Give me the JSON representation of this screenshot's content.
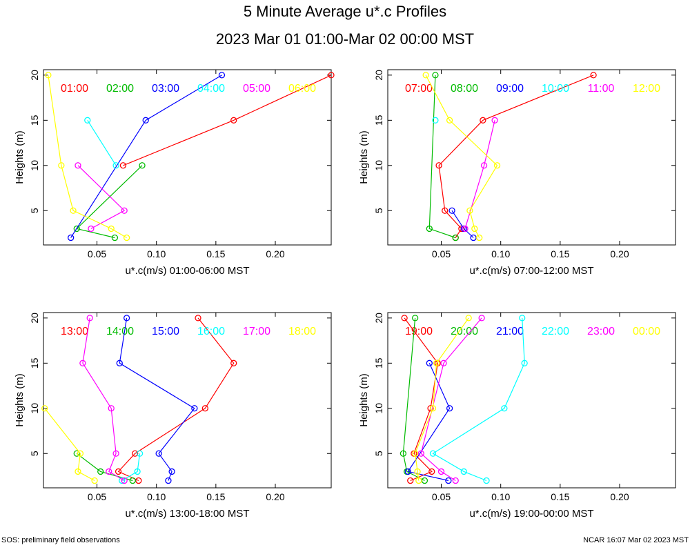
{
  "title": "5 Minute Average u*.c Profiles",
  "subtitle": "2023 Mar 01 01:00-Mar 02 00:00 MST",
  "footer_left": "SOS: preliminary field observations",
  "footer_right": "NCAR 16:07 Mar 02 2023 MST",
  "colors": [
    "#ff0000",
    "#00bb00",
    "#0000ff",
    "#00ffff",
    "#ff00ff",
    "#ffff00"
  ],
  "chart_data": [
    {
      "type": "scatter",
      "xlabel": "u*.c(m/s) 01:00-06:00 MST",
      "ylabel": "Heights (m)",
      "xlim": [
        0.005,
        0.247
      ],
      "ylim": [
        1.2,
        20.6
      ],
      "xticks": [
        "0.05",
        "0.10",
        "0.15",
        "0.20"
      ],
      "xtick_values": [
        0.05,
        0.1,
        0.15,
        0.2
      ],
      "yticks": [
        "5",
        "10",
        "15",
        "20"
      ],
      "ytick_values": [
        5,
        10,
        15,
        20
      ],
      "series": [
        {
          "name": "01:00",
          "x": [
            0.247,
            0.165,
            0.072
          ],
          "y": [
            20,
            15,
            10
          ]
        },
        {
          "name": "02:00",
          "x": [
            0.088,
            0.033,
            0.065
          ],
          "y": [
            10,
            3,
            2
          ]
        },
        {
          "name": "03:00",
          "x": [
            0.155,
            0.091,
            0.028
          ],
          "y": [
            20,
            15,
            2
          ]
        },
        {
          "name": "04:00",
          "x": [
            0.042,
            0.066
          ],
          "y": [
            15,
            10
          ]
        },
        {
          "name": "05:00",
          "x": [
            0.034,
            0.073,
            0.045
          ],
          "y": [
            10,
            5,
            3
          ]
        },
        {
          "name": "06:00",
          "x": [
            0.009,
            0.02,
            0.03,
            0.062,
            0.075
          ],
          "y": [
            20,
            10,
            5,
            3,
            2
          ]
        }
      ]
    },
    {
      "type": "scatter",
      "xlabel": "u*.c(m/s) 07:00-12:00 MST",
      "ylabel": "Heights (m)",
      "xlim": [
        0.005,
        0.247
      ],
      "ylim": [
        1.2,
        20.6
      ],
      "xticks": [
        "0.05",
        "0.10",
        "0.15",
        "0.20"
      ],
      "xtick_values": [
        0.05,
        0.1,
        0.15,
        0.2
      ],
      "yticks": [
        "5",
        "10",
        "15",
        "20"
      ],
      "ytick_values": [
        5,
        10,
        15,
        20
      ],
      "series": [
        {
          "name": "07:00",
          "x": [
            0.178,
            0.085,
            0.048,
            0.053,
            0.067,
            0.062
          ],
          "y": [
            20,
            15,
            10,
            5,
            3,
            2
          ]
        },
        {
          "name": "08:00",
          "x": [
            0.045,
            0.04,
            0.062
          ],
          "y": [
            20,
            3,
            2
          ]
        },
        {
          "name": "09:00",
          "x": [
            0.059,
            0.069,
            0.077
          ],
          "y": [
            5,
            3,
            2
          ]
        },
        {
          "name": "10:00",
          "x": [
            0.045
          ],
          "y": [
            15
          ]
        },
        {
          "name": "11:00",
          "x": [
            0.095,
            0.086,
            0.07
          ],
          "y": [
            15,
            10,
            3
          ]
        },
        {
          "name": "12:00",
          "x": [
            0.037,
            0.057,
            0.097,
            0.074,
            0.078,
            0.082
          ],
          "y": [
            20,
            15,
            10,
            5,
            3,
            2
          ]
        }
      ]
    },
    {
      "type": "scatter",
      "xlabel": "u*.c(m/s) 13:00-18:00 MST",
      "ylabel": "Heights (m)",
      "xlim": [
        0.005,
        0.247
      ],
      "ylim": [
        1.2,
        20.6
      ],
      "xticks": [
        "0.05",
        "0.10",
        "0.15",
        "0.20"
      ],
      "xtick_values": [
        0.05,
        0.1,
        0.15,
        0.2
      ],
      "yticks": [
        "5",
        "10",
        "15",
        "20"
      ],
      "ytick_values": [
        5,
        10,
        15,
        20
      ],
      "series": [
        {
          "name": "13:00",
          "x": [
            0.135,
            0.165,
            0.141,
            0.082,
            0.068,
            0.085
          ],
          "y": [
            20,
            15,
            10,
            5,
            3,
            2
          ]
        },
        {
          "name": "14:00",
          "x": [
            0.033,
            0.053,
            0.08
          ],
          "y": [
            5,
            3,
            2
          ]
        },
        {
          "name": "15:00",
          "x": [
            0.075,
            0.069,
            0.132,
            0.102,
            0.113,
            0.11
          ],
          "y": [
            20,
            15,
            10,
            5,
            3,
            2
          ]
        },
        {
          "name": "16:00",
          "x": [
            0.086,
            0.084,
            0.071
          ],
          "y": [
            5,
            3,
            2
          ]
        },
        {
          "name": "17:00",
          "x": [
            0.044,
            0.038,
            0.062,
            0.066,
            0.06,
            0.073
          ],
          "y": [
            20,
            15,
            10,
            5,
            3,
            2
          ]
        },
        {
          "name": "18:00",
          "x": [
            0.006,
            0.036,
            0.034,
            0.048
          ],
          "y": [
            10,
            5,
            3,
            2
          ]
        }
      ]
    },
    {
      "type": "scatter",
      "xlabel": "u*.c(m/s) 19:00-00:00 MST",
      "ylabel": "Heights (m)",
      "xlim": [
        0.005,
        0.247
      ],
      "ylim": [
        1.2,
        20.6
      ],
      "xticks": [
        "0.05",
        "0.10",
        "0.15",
        "0.20"
      ],
      "xtick_values": [
        0.05,
        0.1,
        0.15,
        0.2
      ],
      "yticks": [
        "5",
        "10",
        "15",
        "20"
      ],
      "ytick_values": [
        5,
        10,
        15,
        20
      ],
      "series": [
        {
          "name": "19:00",
          "x": [
            0.019,
            0.047,
            0.041,
            0.027,
            0.042,
            0.024
          ],
          "y": [
            20,
            15,
            10,
            5,
            3,
            2
          ]
        },
        {
          "name": "20:00",
          "x": [
            0.028,
            0.018,
            0.021,
            0.036
          ],
          "y": [
            20,
            5,
            3,
            2
          ]
        },
        {
          "name": "21:00",
          "x": [
            0.04,
            0.057,
            0.022,
            0.056
          ],
          "y": [
            15,
            10,
            3,
            2
          ]
        },
        {
          "name": "22:00",
          "x": [
            0.118,
            0.12,
            0.103,
            0.043,
            0.069,
            0.088
          ],
          "y": [
            20,
            15,
            10,
            5,
            3,
            2
          ]
        },
        {
          "name": "23:00",
          "x": [
            0.084,
            0.052,
            0.033,
            0.05,
            0.062
          ],
          "y": [
            20,
            15,
            5,
            3,
            2
          ]
        },
        {
          "name": "00:00",
          "x": [
            0.073,
            0.046,
            0.043,
            0.028,
            0.03,
            0.031
          ],
          "y": [
            20,
            15,
            10,
            5,
            3,
            2
          ]
        }
      ]
    }
  ]
}
